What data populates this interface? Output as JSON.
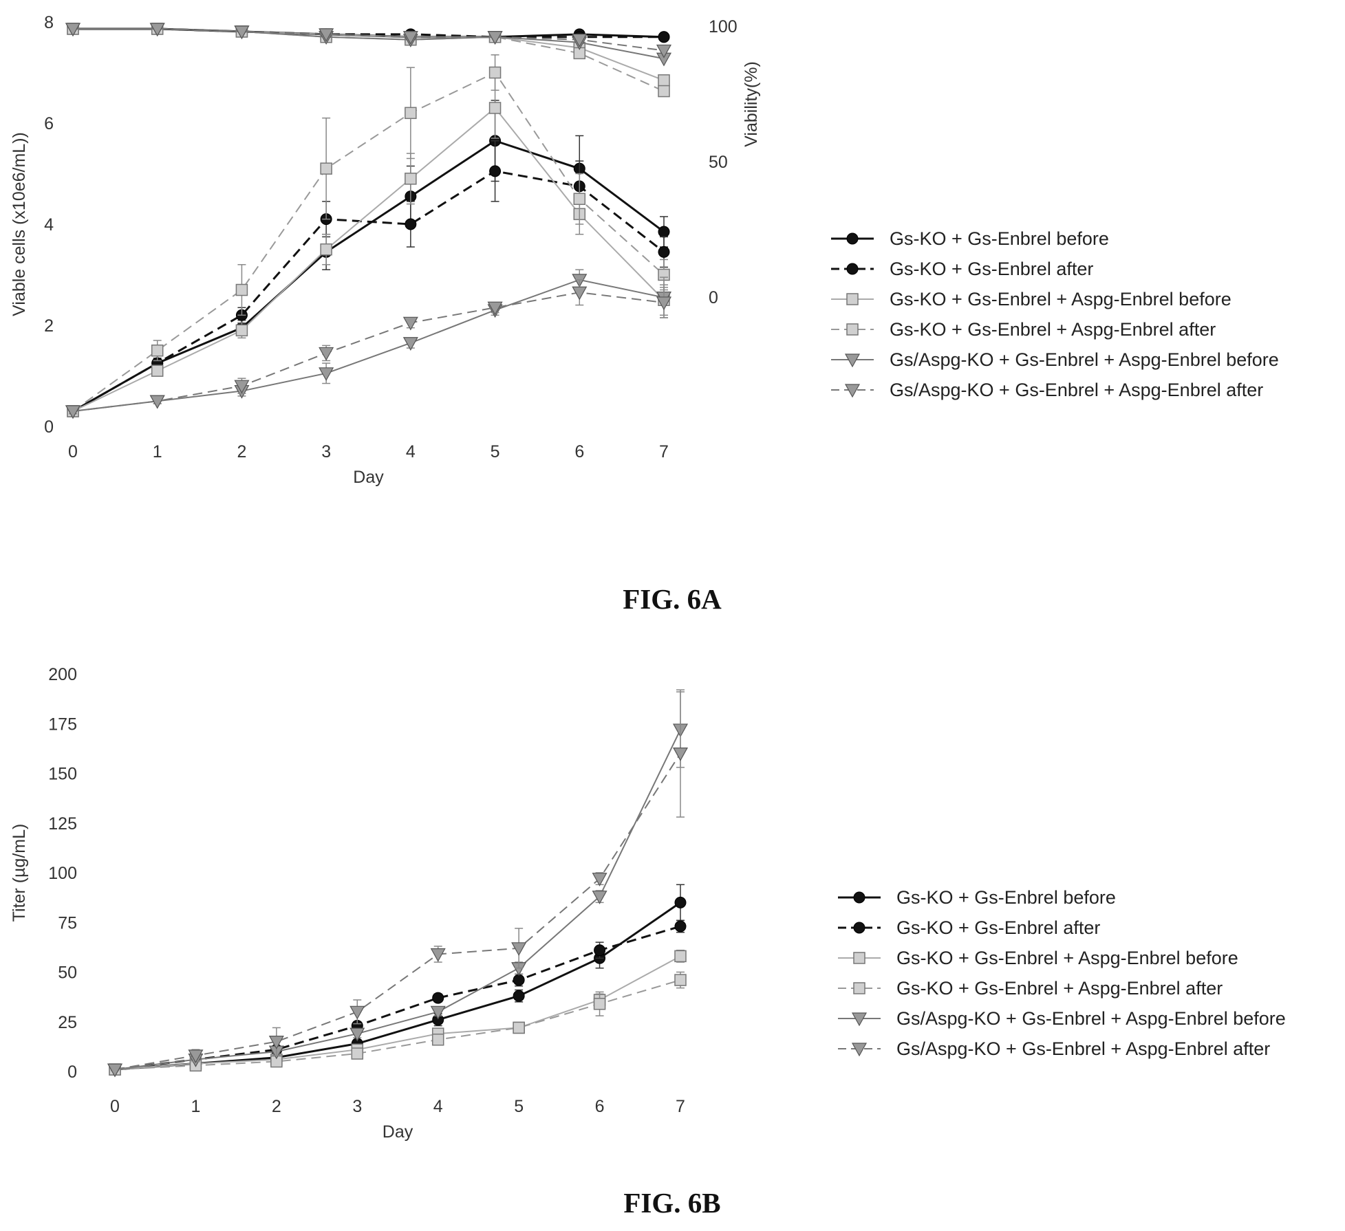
{
  "chart_data": [
    {
      "type": "line",
      "caption": "FIG. 6A",
      "xlabel": "Day",
      "ylabel": "Viable cells (x10e6/mL))",
      "y2label": "Viability(%)",
      "x": [
        0,
        1,
        2,
        3,
        4,
        5,
        6,
        7
      ],
      "xlim": [
        0,
        7
      ],
      "ylim": [
        0,
        8
      ],
      "y2lim": [
        0,
        100
      ],
      "yticks": [
        0,
        2,
        4,
        6,
        8
      ],
      "y2ticks": [
        0,
        50,
        100
      ],
      "y2_tick_labels": [
        "0",
        "50",
        "100"
      ],
      "grid": false,
      "legend_position": "right",
      "series": [
        {
          "name": "Gs-KO + Gs-Enbrel before",
          "color": "#111111",
          "dash": "solid",
          "marker": "circle",
          "values": [
            0.3,
            1.25,
            1.95,
            3.45,
            4.55,
            5.65,
            5.1,
            3.85
          ],
          "errors": [
            0.05,
            0.15,
            0.15,
            0.35,
            0.6,
            0.8,
            0.65,
            0.3
          ],
          "viability": [
            99,
            99,
            98,
            97,
            96,
            96,
            97,
            96
          ]
        },
        {
          "name": "Gs-KO + Gs-Enbrel after",
          "color": "#111111",
          "dash": "dashed",
          "marker": "circle",
          "values": [
            0.3,
            1.25,
            2.2,
            4.1,
            4.0,
            5.05,
            4.75,
            3.45
          ],
          "errors": [
            0.05,
            0.1,
            0.15,
            0.35,
            0.45,
            0.6,
            0.5,
            0.3
          ],
          "viability": [
            99,
            99,
            98,
            97,
            97,
            96,
            96,
            96
          ]
        },
        {
          "name": "Gs-KO + Gs-Enbrel + Aspg-Enbrel before",
          "color": "#aaaaaa",
          "dash": "solid",
          "marker": "square",
          "values": [
            0.3,
            1.1,
            1.9,
            3.5,
            4.9,
            6.3,
            4.2,
            2.5
          ],
          "errors": [
            0.05,
            0.1,
            0.15,
            0.3,
            0.5,
            0.6,
            0.4,
            0.3
          ],
          "viability": [
            99,
            99,
            98,
            97,
            96,
            96,
            92,
            80
          ]
        },
        {
          "name": "Gs-KO + Gs-Enbrel + Aspg-Enbrel after",
          "color": "#999999",
          "dash": "dashed",
          "marker": "square",
          "values": [
            0.3,
            1.5,
            2.7,
            5.1,
            6.2,
            7.0,
            4.5,
            3.0
          ],
          "errors": [
            0.05,
            0.2,
            0.5,
            1.0,
            0.9,
            0.35,
            0.5,
            0.3
          ],
          "viability": [
            99,
            99,
            98,
            96,
            95,
            96,
            90,
            76
          ]
        },
        {
          "name": "Gs/Aspg-KO + Gs-Enbrel + Aspg-Enbrel before",
          "color": "#777777",
          "dash": "solid",
          "marker": "triangle-down",
          "values": [
            0.3,
            0.5,
            0.7,
            1.05,
            1.65,
            2.3,
            2.9,
            2.55
          ],
          "errors": [
            0.05,
            0.05,
            0.1,
            0.2,
            0.1,
            0.1,
            0.2,
            0.4
          ],
          "viability": [
            99,
            99,
            98,
            96,
            95,
            96,
            94,
            88
          ]
        },
        {
          "name": "Gs/Aspg-KO + Gs-Enbrel + Aspg-Enbrel after",
          "color": "#777777",
          "dash": "dashed",
          "marker": "triangle-down",
          "values": [
            0.3,
            0.5,
            0.8,
            1.45,
            2.05,
            2.35,
            2.65,
            2.45
          ],
          "errors": [
            0.05,
            0.05,
            0.15,
            0.15,
            0.1,
            0.1,
            0.25,
            0.3
          ],
          "viability": [
            99,
            99,
            98,
            97,
            96,
            96,
            95,
            91
          ]
        }
      ]
    },
    {
      "type": "line",
      "caption": "FIG. 6B",
      "xlabel": "Day",
      "ylabel": "Titer (µg/mL)",
      "x": [
        0,
        1,
        2,
        3,
        4,
        5,
        6,
        7
      ],
      "xlim": [
        0,
        7
      ],
      "ylim": [
        0,
        200
      ],
      "yticks": [
        0,
        25,
        50,
        75,
        100,
        125,
        150,
        175,
        200
      ],
      "grid": false,
      "legend_position": "right",
      "series": [
        {
          "name": "Gs-KO + Gs-Enbrel before",
          "color": "#111111",
          "dash": "solid",
          "marker": "circle",
          "values": [
            1,
            4,
            7,
            14,
            26,
            38,
            57,
            85
          ],
          "errors": [
            0.5,
            1,
            1.5,
            2,
            3,
            3,
            5,
            9
          ]
        },
        {
          "name": "Gs-KO + Gs-Enbrel after",
          "color": "#111111",
          "dash": "dashed",
          "marker": "circle",
          "values": [
            1,
            6,
            11,
            23,
            37,
            46,
            61,
            73
          ],
          "errors": [
            0.5,
            1,
            1.5,
            2,
            2,
            3,
            4,
            3
          ]
        },
        {
          "name": "Gs-KO + Gs-Enbrel + Aspg-Enbrel before",
          "color": "#aaaaaa",
          "dash": "solid",
          "marker": "square",
          "values": [
            1,
            4,
            6,
            11,
            19,
            22,
            36,
            58
          ],
          "errors": [
            0.5,
            1,
            1,
            1.5,
            2,
            2,
            3,
            3
          ]
        },
        {
          "name": "Gs-KO + Gs-Enbrel + Aspg-Enbrel after",
          "color": "#999999",
          "dash": "dashed",
          "marker": "square",
          "values": [
            1,
            3,
            5,
            9,
            16,
            22,
            34,
            46
          ],
          "errors": [
            0.5,
            1,
            1,
            1.5,
            2,
            2,
            6,
            4
          ]
        },
        {
          "name": "Gs/Aspg-KO + Gs-Enbrel + Aspg-Enbrel before",
          "color": "#777777",
          "dash": "solid",
          "marker": "triangle-down",
          "values": [
            1,
            6,
            10,
            19,
            30,
            52,
            88,
            172
          ],
          "errors": [
            0.5,
            1,
            1.5,
            2,
            2,
            3,
            3,
            19
          ]
        },
        {
          "name": "Gs/Aspg-KO + Gs-Enbrel + Aspg-Enbrel after",
          "color": "#777777",
          "dash": "dashed",
          "marker": "triangle-down",
          "values": [
            1,
            8,
            15,
            30,
            59,
            62,
            97,
            160
          ],
          "errors": [
            0.5,
            3,
            7,
            6,
            4,
            10,
            3,
            32
          ]
        }
      ]
    }
  ]
}
